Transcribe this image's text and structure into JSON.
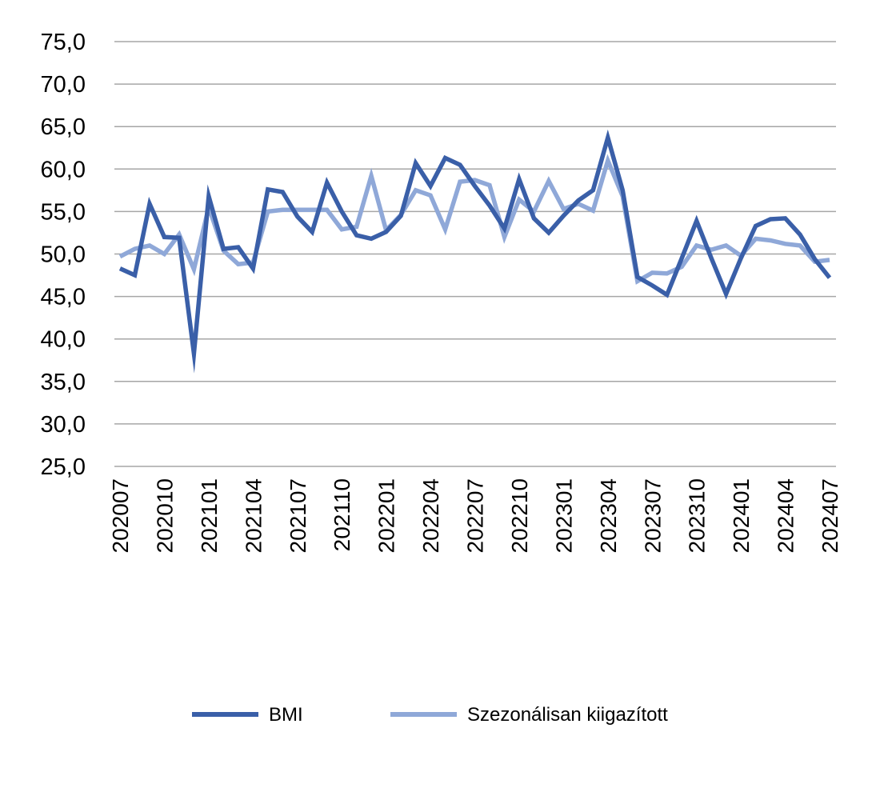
{
  "chart_data": {
    "type": "line",
    "title": "",
    "xlabel": "",
    "ylabel": "",
    "ylim": [
      25,
      75
    ],
    "y_ticks": [
      "25,0",
      "30,0",
      "35,0",
      "40,0",
      "45,0",
      "50,0",
      "55,0",
      "60,0",
      "65,0",
      "70,0",
      "75,0"
    ],
    "x_tick_labels": [
      "202007",
      "202010",
      "202101",
      "202104",
      "202107",
      "202110",
      "202201",
      "202204",
      "202207",
      "202210",
      "202301",
      "202304",
      "202307",
      "202310",
      "202401",
      "202404",
      "202407"
    ],
    "grid": true,
    "legend_position": "bottom",
    "x": [
      "202007",
      "202008",
      "202009",
      "202010",
      "202011",
      "202012",
      "202101",
      "202102",
      "202103",
      "202104",
      "202105",
      "202106",
      "202107",
      "202108",
      "202109",
      "202110",
      "202111",
      "202112",
      "202201",
      "202202",
      "202203",
      "202204",
      "202205",
      "202206",
      "202207",
      "202208",
      "202209",
      "202210",
      "202211",
      "202212",
      "202301",
      "202302",
      "202303",
      "202304",
      "202305",
      "202306",
      "202307",
      "202308",
      "202309",
      "202310",
      "202311",
      "202312",
      "202401",
      "202402",
      "202403",
      "202404",
      "202405",
      "202406",
      "202407"
    ],
    "series": [
      {
        "name": "BMI",
        "color": "#3a5fa8",
        "values": [
          48.3,
          47.5,
          55.9,
          52.0,
          51.9,
          38.3,
          56.8,
          50.6,
          50.8,
          48.3,
          57.6,
          57.3,
          54.4,
          52.6,
          58.4,
          55.0,
          52.2,
          51.8,
          52.6,
          54.5,
          60.7,
          58.0,
          61.3,
          60.5,
          58.0,
          55.7,
          53.0,
          58.8,
          54.2,
          52.5,
          54.5,
          56.3,
          57.5,
          63.7,
          57.5,
          47.3,
          46.3,
          45.2,
          49.5,
          53.9,
          49.5,
          45.3,
          49.5,
          53.3,
          54.1,
          54.2,
          52.3,
          49.4,
          47.2
        ]
      },
      {
        "name": "Szezonálisan kiigazított",
        "color": "#8fa8d8",
        "values": [
          49.7,
          50.6,
          51.0,
          50.0,
          52.3,
          48.2,
          55.5,
          50.4,
          48.8,
          49.0,
          55.0,
          55.2,
          55.2,
          55.2,
          55.2,
          52.9,
          53.2,
          59.2,
          52.8,
          54.6,
          57.5,
          56.9,
          52.9,
          58.5,
          58.7,
          58.1,
          52.0,
          56.4,
          55.0,
          58.6,
          55.3,
          55.9,
          55.1,
          61.0,
          56.8,
          46.8,
          47.8,
          47.7,
          48.5,
          51.0,
          50.5,
          51.0,
          49.8,
          51.8,
          51.6,
          51.2,
          51.0,
          49.1,
          49.3
        ]
      }
    ]
  }
}
